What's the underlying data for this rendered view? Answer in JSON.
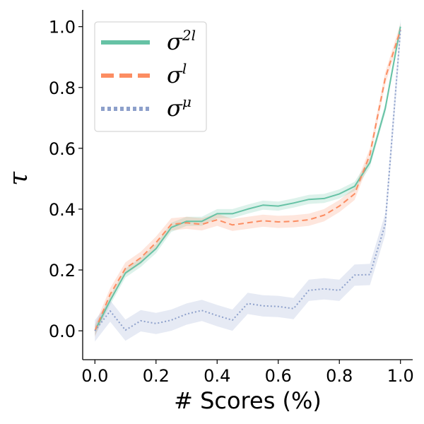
{
  "chart_data": {
    "type": "line",
    "title": "",
    "xlabel": "# Scores (%)",
    "ylabel": "τ",
    "xlim": [
      -0.04,
      1.04
    ],
    "ylim": [
      -0.095,
      1.055
    ],
    "xticks": [
      0.0,
      0.2,
      0.4,
      0.6,
      0.8,
      1.0
    ],
    "xtick_labels": [
      "0.0",
      "0.2",
      "0.4",
      "0.6",
      "0.8",
      "1.0"
    ],
    "yticks": [
      0.0,
      0.2,
      0.4,
      0.6,
      0.8,
      1.0
    ],
    "ytick_labels": [
      "0.0",
      "0.2",
      "0.4",
      "0.6",
      "0.8",
      "1.0"
    ],
    "grid": false,
    "legend_position": "top-left",
    "x": [
      0.0,
      0.05,
      0.1,
      0.15,
      0.2,
      0.25,
      0.3,
      0.35,
      0.4,
      0.45,
      0.5,
      0.55,
      0.6,
      0.65,
      0.7,
      0.75,
      0.8,
      0.85,
      0.9,
      0.95,
      1.0
    ],
    "series": [
      {
        "name": "σ2l",
        "legend_base": "σ",
        "legend_sup": "2l",
        "color": "#66c2a5",
        "dash": "solid",
        "values": [
          0.0,
          0.1,
          0.19,
          0.225,
          0.27,
          0.34,
          0.36,
          0.36,
          0.385,
          0.385,
          0.4,
          0.413,
          0.41,
          0.42,
          0.432,
          0.435,
          0.45,
          0.475,
          0.553,
          0.73,
          1.0
        ],
        "band": 0.015
      },
      {
        "name": "σl",
        "legend_base": "σ",
        "legend_sup": "l",
        "color": "#fc8d62",
        "dash": "dashed",
        "values": [
          0.0,
          0.12,
          0.205,
          0.24,
          0.29,
          0.35,
          0.355,
          0.35,
          0.365,
          0.348,
          0.355,
          0.362,
          0.358,
          0.36,
          0.365,
          0.38,
          0.41,
          0.45,
          0.58,
          0.83,
          0.99
        ],
        "band": 0.02
      },
      {
        "name": "σμ",
        "legend_base": "σ",
        "legend_sup": "μ",
        "color": "#8da0cb",
        "dash": "dotted",
        "values": [
          0.0,
          0.065,
          0.002,
          0.033,
          0.024,
          0.035,
          0.055,
          0.067,
          0.05,
          0.035,
          0.09,
          0.082,
          0.08,
          0.073,
          0.133,
          0.138,
          0.133,
          0.183,
          0.185,
          0.35,
          0.99
        ],
        "band": 0.035
      }
    ]
  }
}
